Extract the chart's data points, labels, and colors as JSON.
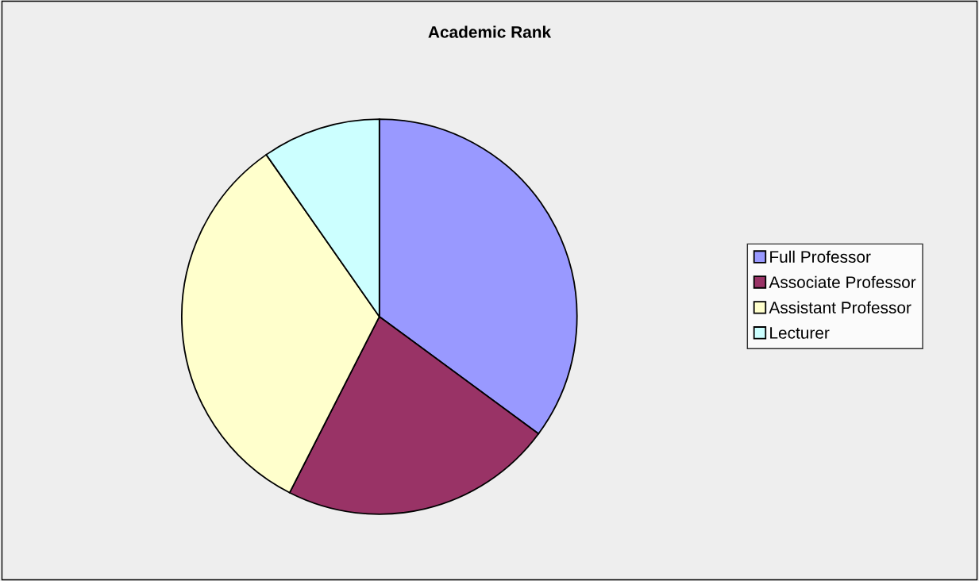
{
  "chart_data": {
    "type": "pie",
    "title": "Academic Rank",
    "categories": [
      "Full Professor",
      "Associate Professor",
      "Assistant Professor",
      "Lecturer"
    ],
    "values": [
      35.1,
      22.4,
      32.8,
      9.7
    ],
    "colors": [
      "#9999ff",
      "#993366",
      "#ffffcc",
      "#ccffff"
    ],
    "legend": "right"
  }
}
